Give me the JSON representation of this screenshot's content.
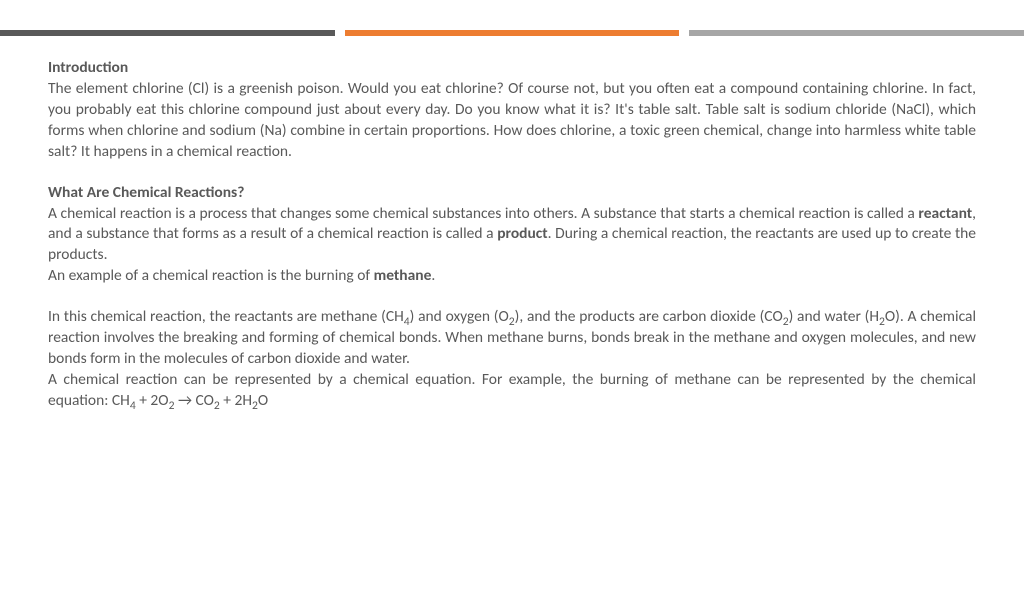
{
  "bars": {
    "color1": "#595959",
    "color2": "#ed7d31",
    "color3": "#a6a6a6"
  },
  "text": {
    "heading1": "Introduction",
    "para1": "The element chlorine (Cl) is a greenish poison. Would you eat chlorine? Of course not, but you often eat a compound containing chlorine. In fact, you probably eat this chlorine compound just about every day. Do you know what it is? It's table salt. Table salt is sodium chloride (NaCl), which forms when chlorine and sodium (Na) combine in certain proportions. How does chlorine, a toxic green chemical, change into harmless white table salt? It happens in a chemical reaction.",
    "heading2": "What Are Chemical Reactions?",
    "para2a": "A chemical reaction is a process that changes some chemical substances into others. A substance that starts a chemical reaction is called a ",
    "para2b_bold": "reactant",
    "para2c": ", and a substance that forms as a result of a chemical reaction is called a ",
    "para2d_bold": "product",
    "para2e": ". During a chemical reaction, the reactants are used up to create the products.",
    "para3a": "An example of a chemical reaction is the burning of ",
    "para3b_bold": "methane",
    "para3c": ".",
    "para4": "In this chemical reaction, the reactants are methane (CH₄) and oxygen (O₂), and the products are carbon dioxide (CO₂) and water (H₂O). A chemical reaction involves the breaking and forming of chemical bonds. When methane burns, bonds break in the methane and oxygen molecules, and new bonds form in the molecules of carbon dioxide and water.",
    "para5": "A chemical reaction can be represented by a chemical equation. For example, the burning of methane can be represented by the chemical equation: CH₄ + 2O₂ → CO₂ + 2H₂O"
  },
  "style": {
    "text_color": "#595959",
    "font_size_pt": 12,
    "background": "#ffffff"
  }
}
